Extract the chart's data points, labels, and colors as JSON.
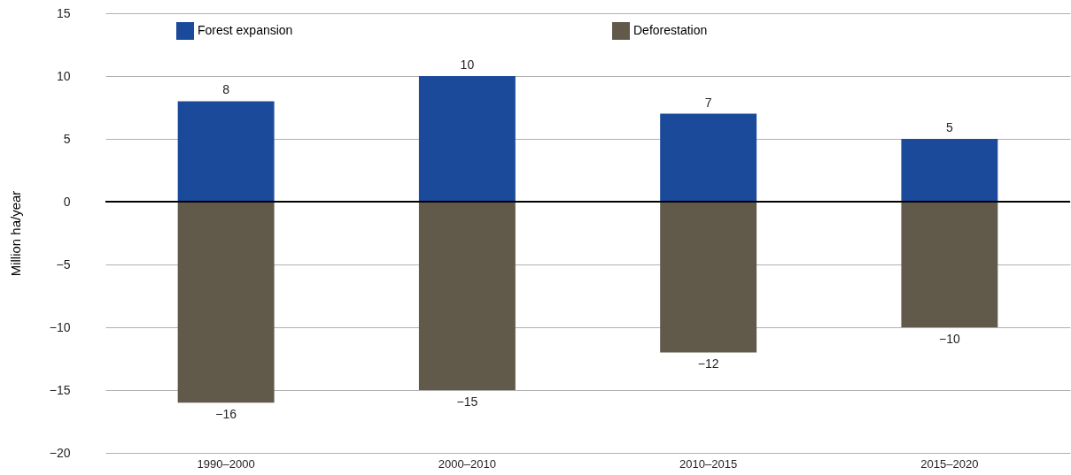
{
  "chart_data": {
    "type": "bar",
    "ylabel": "Million ha/year",
    "categories": [
      "1990–2000",
      "2000–2010",
      "2010–2015",
      "2015–2020"
    ],
    "stacked": true,
    "series": [
      {
        "name": "Forest expansion",
        "color": "#1c4a9a",
        "values": [
          8,
          10,
          7,
          5
        ]
      },
      {
        "name": "Deforestation",
        "color": "#615a4b",
        "values": [
          -16,
          -15,
          -12,
          -10
        ]
      }
    ],
    "ylim": [
      -20,
      15
    ],
    "yticks": [
      -20,
      -15,
      -10,
      -5,
      0,
      5,
      10,
      15
    ],
    "grid": "y",
    "legend": "top",
    "data_labels": true,
    "ref_lines": [
      {
        "axis": "y",
        "value": 0,
        "color": "#000000"
      }
    ]
  }
}
